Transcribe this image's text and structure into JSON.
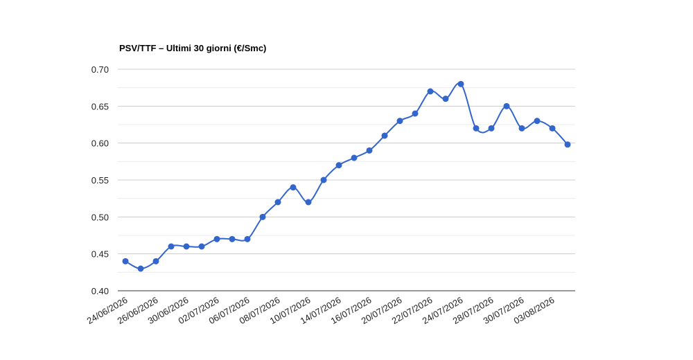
{
  "chart_data": {
    "type": "line",
    "title": "PSV/TTF – Ultimi 30 giorni (€/Smc)",
    "categories": [
      "24/06/2026",
      null,
      "26/06/2026",
      null,
      "30/06/2026",
      null,
      "02/07/2026",
      null,
      "06/07/2026",
      null,
      "08/07/2026",
      null,
      "10/07/2026",
      null,
      "14/07/2026",
      null,
      "16/07/2026",
      null,
      "20/07/2026",
      null,
      "22/07/2026",
      null,
      "24/07/2026",
      null,
      "28/07/2026",
      null,
      "30/07/2026",
      null,
      "03/08/2026",
      null
    ],
    "series": [
      {
        "color": "#3366cc",
        "values": [
          0.44,
          0.43,
          0.44,
          0.46,
          0.46,
          0.46,
          0.47,
          0.47,
          0.47,
          0.5,
          0.52,
          0.54,
          0.52,
          0.55,
          0.57,
          0.58,
          0.59,
          0.61,
          0.63,
          0.64,
          0.67,
          0.66,
          0.68,
          0.62,
          0.62,
          0.65,
          0.62,
          0.63,
          0.62,
          0.598
        ]
      }
    ],
    "ylim": [
      0.4,
      0.7
    ],
    "yticks": [
      {
        "value": 0.4,
        "label": "0.40"
      },
      {
        "value": 0.45,
        "label": "0.45"
      },
      {
        "value": 0.5,
        "label": "0.50"
      },
      {
        "value": 0.55,
        "label": "0.55"
      },
      {
        "value": 0.6,
        "label": "0.60"
      },
      {
        "value": 0.65,
        "label": "0.65"
      },
      {
        "value": 0.7,
        "label": "0.70"
      }
    ],
    "grid": true
  }
}
